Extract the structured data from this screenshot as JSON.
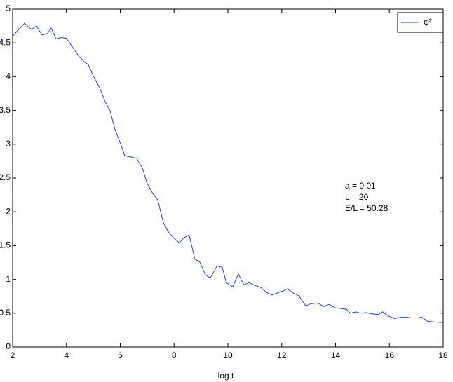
{
  "chart_data": {
    "type": "line",
    "x_label": "log t",
    "x": [
      2.0,
      2.44,
      2.7,
      2.89,
      3.09,
      3.3,
      3.43,
      3.61,
      3.82,
      4.0,
      4.27,
      4.47,
      4.66,
      4.81,
      5.0,
      5.23,
      5.44,
      5.62,
      5.8,
      6.01,
      6.17,
      6.43,
      6.61,
      6.82,
      7.0,
      7.21,
      7.39,
      7.6,
      7.78,
      7.99,
      8.2,
      8.35,
      8.56,
      8.77,
      8.95,
      9.16,
      9.34,
      9.6,
      9.79,
      9.94,
      10.18,
      10.39,
      10.59,
      10.8,
      11.01,
      11.22,
      11.43,
      11.64,
      11.84,
      12.05,
      12.21,
      12.42,
      12.63,
      12.89,
      13.09,
      13.33,
      13.56,
      13.77,
      13.98,
      14.19,
      14.4,
      14.55,
      14.76,
      14.94,
      15.13,
      15.33,
      15.59,
      15.75,
      15.96,
      16.19,
      16.43,
      16.64,
      16.84,
      17.05,
      17.21,
      17.42,
      17.68,
      18.0
    ],
    "series": [
      {
        "name": "φ²",
        "color": "#1f3fff",
        "values": [
          4.6,
          4.79,
          4.7,
          4.75,
          4.62,
          4.64,
          4.72,
          4.56,
          4.58,
          4.57,
          4.41,
          4.3,
          4.22,
          4.18,
          4.01,
          3.84,
          3.63,
          3.5,
          3.22,
          3.01,
          2.83,
          2.81,
          2.79,
          2.65,
          2.42,
          2.27,
          2.18,
          1.84,
          1.71,
          1.61,
          1.54,
          1.61,
          1.66,
          1.3,
          1.26,
          1.07,
          1.02,
          1.2,
          1.18,
          0.95,
          0.89,
          1.08,
          0.92,
          0.95,
          0.91,
          0.88,
          0.81,
          0.77,
          0.8,
          0.83,
          0.86,
          0.8,
          0.76,
          0.61,
          0.64,
          0.65,
          0.6,
          0.63,
          0.58,
          0.57,
          0.56,
          0.5,
          0.52,
          0.5,
          0.51,
          0.49,
          0.48,
          0.52,
          0.46,
          0.42,
          0.44,
          0.44,
          0.43,
          0.43,
          0.44,
          0.38,
          0.37,
          0.36
        ]
      }
    ],
    "xlim": [
      2,
      18
    ],
    "xticks": [
      2,
      4,
      6,
      8,
      10,
      12,
      14,
      16,
      18
    ],
    "ylim": [
      0,
      5
    ],
    "yticks": [
      0,
      0.5,
      1,
      1.5,
      2,
      2.5,
      3,
      3.5,
      4,
      4.5,
      5
    ],
    "annotations": [
      "a = 0.01",
      "L = 20",
      "E/L = 50.28"
    ],
    "legend": "upper right",
    "grid": false
  }
}
